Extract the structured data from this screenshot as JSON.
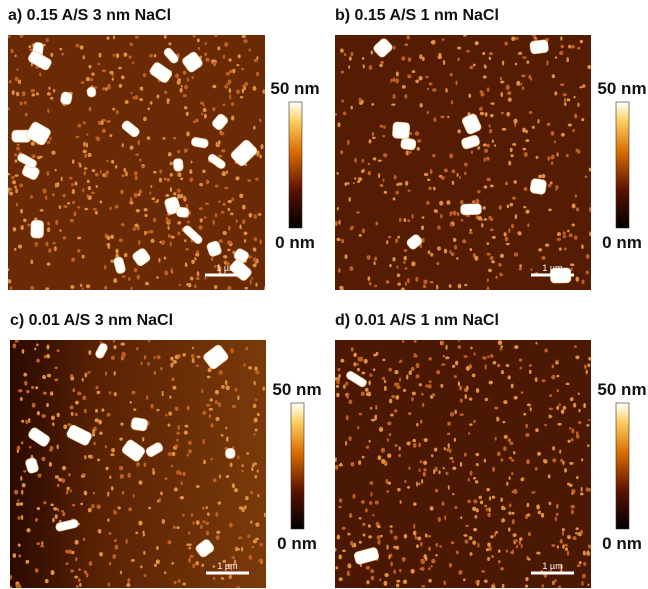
{
  "panels": [
    {
      "title": "a) 0.15 A/S 3 nm NaCl",
      "colorbar_max": "50 nm",
      "colorbar_min": "0 nm",
      "scale_bar": "1 µm"
    },
    {
      "title": "b) 0.15 A/S 1 nm NaCl",
      "colorbar_max": "50 nm",
      "colorbar_min": "0 nm",
      "scale_bar": "1 µm"
    },
    {
      "title": "c) 0.01 A/S 3 nm NaCl",
      "colorbar_max": "50 nm",
      "colorbar_min": "0 nm",
      "scale_bar": "1 µm"
    },
    {
      "title": "d) 0.01 A/S 1 nm NaCl",
      "colorbar_max": "50 nm",
      "colorbar_min": "0 nm",
      "scale_bar": "1 µm"
    }
  ]
}
